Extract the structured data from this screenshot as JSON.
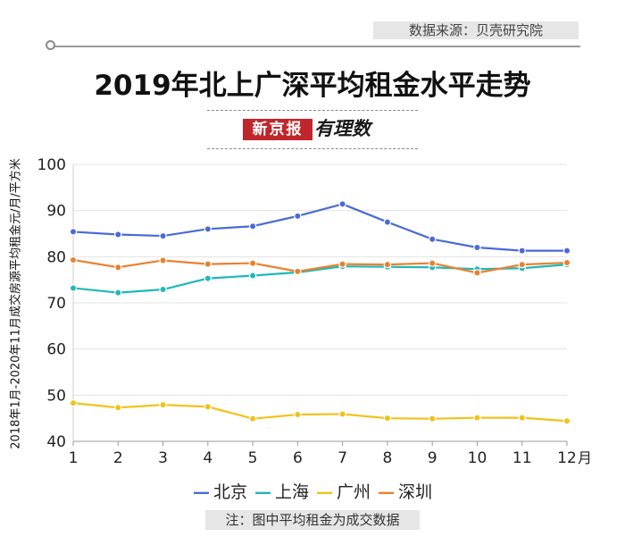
{
  "header": {
    "source": "数据来源：贝壳研究院",
    "title": "2019年北上广深平均租金水平走势",
    "brand_name": "新京报",
    "brand_tag": "有理数"
  },
  "note": "注：图中平均租金为成交数据",
  "chart_data": {
    "type": "line",
    "title": "2019年北上广深平均租金水平走势",
    "ylabel": "2018年1月-2020年11月成交房源平均租金元/月/平方米",
    "x_unit": "月",
    "x": [
      1,
      2,
      3,
      4,
      5,
      6,
      7,
      8,
      9,
      10,
      11,
      12
    ],
    "ylim": [
      40,
      100
    ],
    "yticks": [
      40,
      50,
      60,
      70,
      80,
      90,
      100
    ],
    "grid": "horizontal",
    "legend_position": "bottom",
    "series": [
      {
        "name": "北京",
        "color": "#4a6bd6",
        "values": [
          85.4,
          84.8,
          84.5,
          86.0,
          86.6,
          88.8,
          91.4,
          87.5,
          83.8,
          82.0,
          81.3,
          81.3
        ]
      },
      {
        "name": "上海",
        "color": "#1fb8b8",
        "values": [
          73.2,
          72.2,
          72.9,
          75.3,
          75.9,
          76.6,
          77.9,
          77.8,
          77.7,
          77.3,
          77.5,
          78.3
        ]
      },
      {
        "name": "广州",
        "color": "#f2c218",
        "values": [
          48.3,
          47.3,
          47.9,
          47.5,
          44.9,
          45.8,
          45.9,
          45.0,
          44.9,
          45.1,
          45.1,
          44.4
        ]
      },
      {
        "name": "深圳",
        "color": "#e8812f",
        "values": [
          79.3,
          77.7,
          79.2,
          78.4,
          78.6,
          76.8,
          78.4,
          78.3,
          78.6,
          76.5,
          78.3,
          78.7
        ]
      }
    ]
  }
}
